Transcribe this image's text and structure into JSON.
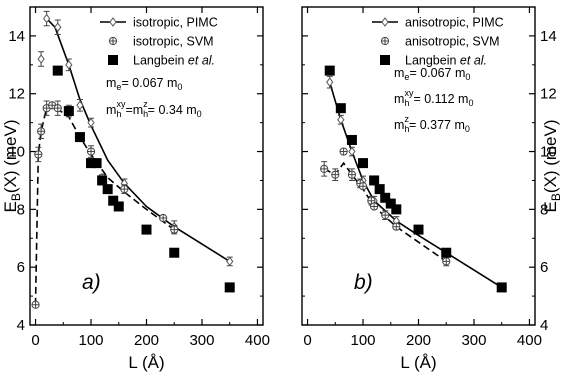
{
  "chart_data": [
    {
      "type": "scatter",
      "panel_tag": "a)",
      "xlabel": "L (Å)",
      "ylabel": "E_B(X) (meV)",
      "ylabel_main": "E",
      "ylabel_sub": "B",
      "ylabel_rest": "(X) (meV)",
      "xlim": [
        -10,
        410
      ],
      "ylim": [
        4,
        15
      ],
      "xticks": [
        0,
        100,
        200,
        300,
        400
      ],
      "yticks": [
        4,
        6,
        8,
        10,
        12,
        14
      ],
      "y_axis_side": "left",
      "grid": false,
      "legend_position": "top-right",
      "legend": [
        {
          "label": "isotropic, PIMC",
          "marker": "diamond-line"
        },
        {
          "label": "isotropic, SVM",
          "marker": "circle-plus-dash"
        },
        {
          "label_pre": "Langbein ",
          "label_italic": "et al.",
          "marker": "square"
        }
      ],
      "annotations": [
        {
          "main": "m",
          "sub": "e",
          "rest": "= 0.067 m",
          "sub2": "0"
        },
        {
          "main": "m",
          "sub": "h",
          "sup": "xy",
          "mid": "=m",
          "sub_mid": "h",
          "sup_mid": "z",
          "rest": "= 0.34 m",
          "sub2": "0"
        }
      ],
      "series": [
        {
          "name": "isotropic, PIMC",
          "style": "solid-diamond",
          "x": [
            10,
            20,
            40,
            60,
            80,
            100,
            160,
            250,
            350
          ],
          "y": [
            13.2,
            14.6,
            14.3,
            13.0,
            11.6,
            11.0,
            8.9,
            7.4,
            6.2
          ],
          "err": [
            0.25,
            0.25,
            0.25,
            0.2,
            0.2,
            0.15,
            0.15,
            0.2,
            0.15
          ]
        },
        {
          "name": "isotropic, SVM",
          "style": "dashed-circle-plus",
          "x": [
            0,
            5,
            10,
            20,
            30,
            40,
            60,
            80,
            100,
            120,
            160,
            230,
            250
          ],
          "y": [
            4.7,
            9.9,
            10.7,
            11.5,
            11.6,
            11.5,
            11.4,
            10.5,
            10.0,
            9.1,
            8.7,
            7.7,
            7.3
          ],
          "err": [
            0,
            0.25,
            0.25,
            0.25,
            0,
            0.25,
            0.2,
            0,
            0.2,
            0,
            0.15,
            0,
            0.15
          ]
        },
        {
          "name": "Langbein et al.",
          "style": "square",
          "x": [
            40,
            60,
            80,
            100,
            110,
            120,
            130,
            140,
            150,
            200,
            250,
            350
          ],
          "y": [
            12.8,
            11.4,
            10.5,
            9.6,
            9.6,
            9.0,
            8.7,
            8.3,
            8.1,
            7.3,
            6.5,
            5.3
          ]
        }
      ],
      "fit_lines": {
        "solid": {
          "x": [
            20,
            35,
            60,
            80,
            100,
            130,
            160,
            200,
            250,
            300,
            350
          ],
          "y": [
            14.6,
            14.3,
            13.0,
            11.8,
            10.9,
            9.7,
            8.9,
            8.1,
            7.4,
            6.8,
            6.2
          ]
        },
        "dashed": {
          "x": [
            0,
            5,
            10,
            20,
            30,
            45,
            60,
            80,
            100,
            130,
            160,
            200,
            250
          ],
          "y": [
            4.7,
            9.9,
            10.7,
            11.5,
            11.6,
            11.4,
            11.2,
            10.5,
            9.9,
            9.1,
            8.6,
            8.0,
            7.3
          ]
        }
      }
    },
    {
      "type": "scatter",
      "panel_tag": "b)",
      "xlabel": "L (Å)",
      "ylabel": "E_B(X) (meV)",
      "ylabel_main": "E",
      "ylabel_sub": "B",
      "ylabel_rest": "(X) (meV)",
      "xlim": [
        -10,
        410
      ],
      "ylim": [
        4,
        15
      ],
      "xticks": [
        0,
        100,
        200,
        300,
        400
      ],
      "yticks": [
        4,
        6,
        8,
        10,
        12,
        14
      ],
      "y_axis_side": "right",
      "grid": false,
      "legend_position": "top-right",
      "legend": [
        {
          "label": "anisotropic, PIMC",
          "marker": "diamond-line"
        },
        {
          "label": "anisotropic, SVM",
          "marker": "circle-plus-dash"
        },
        {
          "label_pre": "Langbein ",
          "label_italic": "et al.",
          "marker": "square"
        }
      ],
      "annotations": [
        {
          "main": "m",
          "sub": "e",
          "rest": "= 0.067 m",
          "sub2": "0"
        },
        {
          "main": "m",
          "sub": "h",
          "sup": "xy",
          "rest": "= 0.112 m",
          "sub2": "0"
        },
        {
          "main": "m",
          "sub": "h",
          "sup": "z",
          "rest": "= 0.377 m",
          "sub2": "0"
        }
      ],
      "series": [
        {
          "name": "anisotropic, PIMC",
          "style": "solid-diamond",
          "x": [
            40,
            60,
            80,
            100,
            120,
            160,
            250,
            350
          ],
          "y": [
            12.4,
            11.1,
            10.0,
            9.0,
            8.3,
            7.6,
            6.5,
            5.3
          ],
          "err": [
            0.2,
            0.15,
            0.15,
            0.15,
            0.15,
            0.15,
            0.1,
            0.1
          ]
        },
        {
          "name": "anisotropic, SVM",
          "style": "dashed-circle-plus",
          "x": [
            30,
            50,
            65,
            80,
            95,
            100,
            115,
            120,
            140,
            160,
            250,
            350
          ],
          "y": [
            9.4,
            9.2,
            10.0,
            9.2,
            8.9,
            8.8,
            8.3,
            8.1,
            7.8,
            7.4,
            6.2,
            5.3
          ],
          "err": [
            0.25,
            0.2,
            0,
            0.2,
            0.15,
            0,
            0.15,
            0,
            0.15,
            0,
            0.15,
            0
          ]
        },
        {
          "name": "Langbein et al.",
          "style": "square",
          "x": [
            40,
            60,
            80,
            100,
            120,
            130,
            140,
            150,
            160,
            200,
            250,
            350
          ],
          "y": [
            12.8,
            11.5,
            10.4,
            9.6,
            9.0,
            8.7,
            8.4,
            8.2,
            8.0,
            7.3,
            6.5,
            5.3
          ]
        }
      ],
      "fit_lines": {
        "solid": {
          "x": [
            40,
            60,
            80,
            100,
            120,
            160,
            200,
            250,
            300,
            350
          ],
          "y": [
            12.4,
            11.1,
            10.0,
            9.0,
            8.3,
            7.6,
            7.1,
            6.5,
            5.9,
            5.3
          ]
        },
        "dashed": {
          "x": [
            30,
            50,
            65,
            80,
            100,
            120,
            160,
            250
          ],
          "y": [
            9.4,
            9.2,
            9.6,
            9.2,
            8.7,
            8.1,
            7.4,
            6.2
          ]
        }
      }
    }
  ]
}
